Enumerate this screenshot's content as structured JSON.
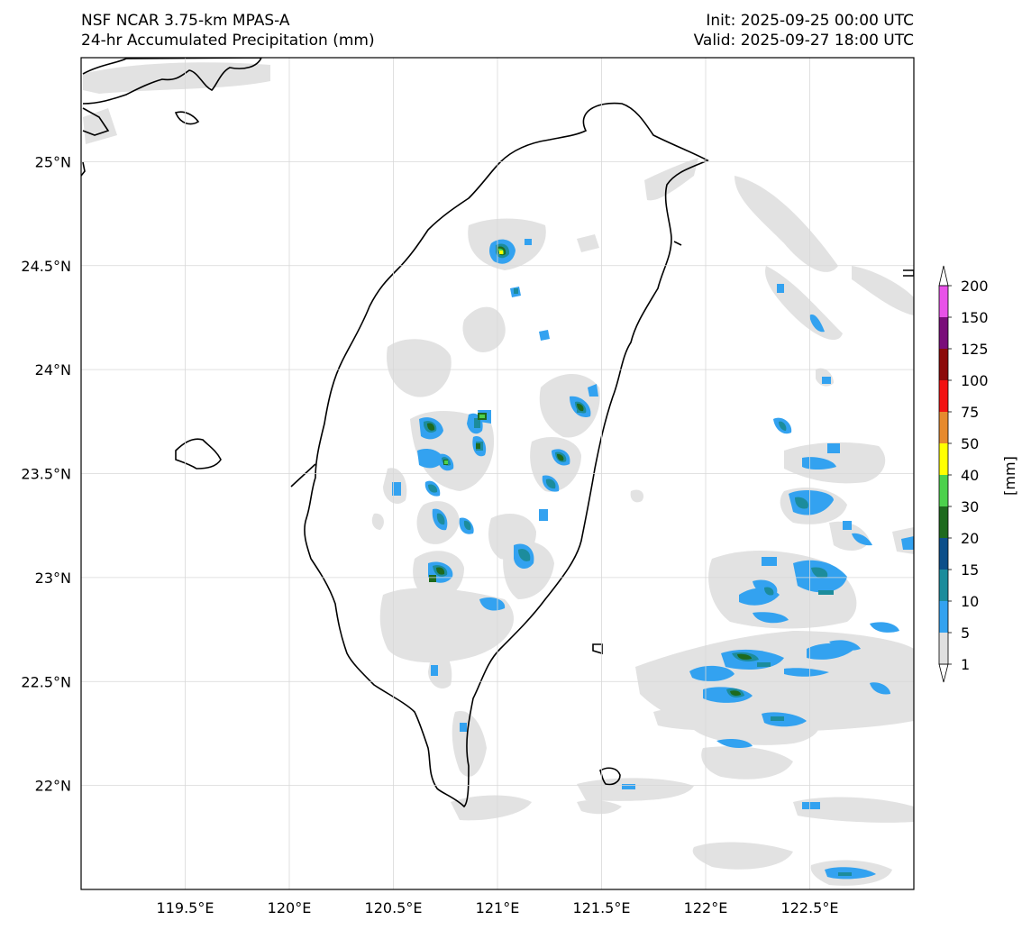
{
  "header": {
    "model": "NSF NCAR 3.75-km MPAS-A",
    "field": "24-hr Accumulated Precipitation (mm)",
    "init": "Init: 2025-09-25 00:00 UTC",
    "valid": "Valid: 2025-09-27 18:00 UTC"
  },
  "axes": {
    "lon_ticks": [
      "119.5°E",
      "120°E",
      "120.5°E",
      "121°E",
      "121.5°E",
      "122°E",
      "122.5°E"
    ],
    "lat_ticks": [
      "25°N",
      "24.5°N",
      "24°N",
      "23.5°N",
      "23°N",
      "22.5°N",
      "22°N"
    ],
    "lon_values": [
      119.5,
      120.0,
      120.5,
      121.0,
      121.5,
      122.0,
      122.5
    ],
    "lat_values": [
      25.0,
      24.5,
      24.0,
      23.5,
      23.0,
      22.5,
      22.0
    ],
    "lon_range": [
      119.0,
      123.0
    ],
    "lat_range": [
      21.5,
      25.5
    ]
  },
  "colorbar": {
    "unit_label": "[mm]",
    "levels": [
      "1",
      "5",
      "10",
      "15",
      "20",
      "30",
      "40",
      "50",
      "75",
      "100",
      "125",
      "150",
      "200"
    ],
    "colors": [
      "#e0e0e0",
      "#33a2f0",
      "#1c8c9c",
      "#0c4f8a",
      "#1e6a1e",
      "#4cd14c",
      "#ffff00",
      "#e68a2e",
      "#f21212",
      "#8c0a0a",
      "#7a0d7a",
      "#e852e8"
    ]
  }
}
